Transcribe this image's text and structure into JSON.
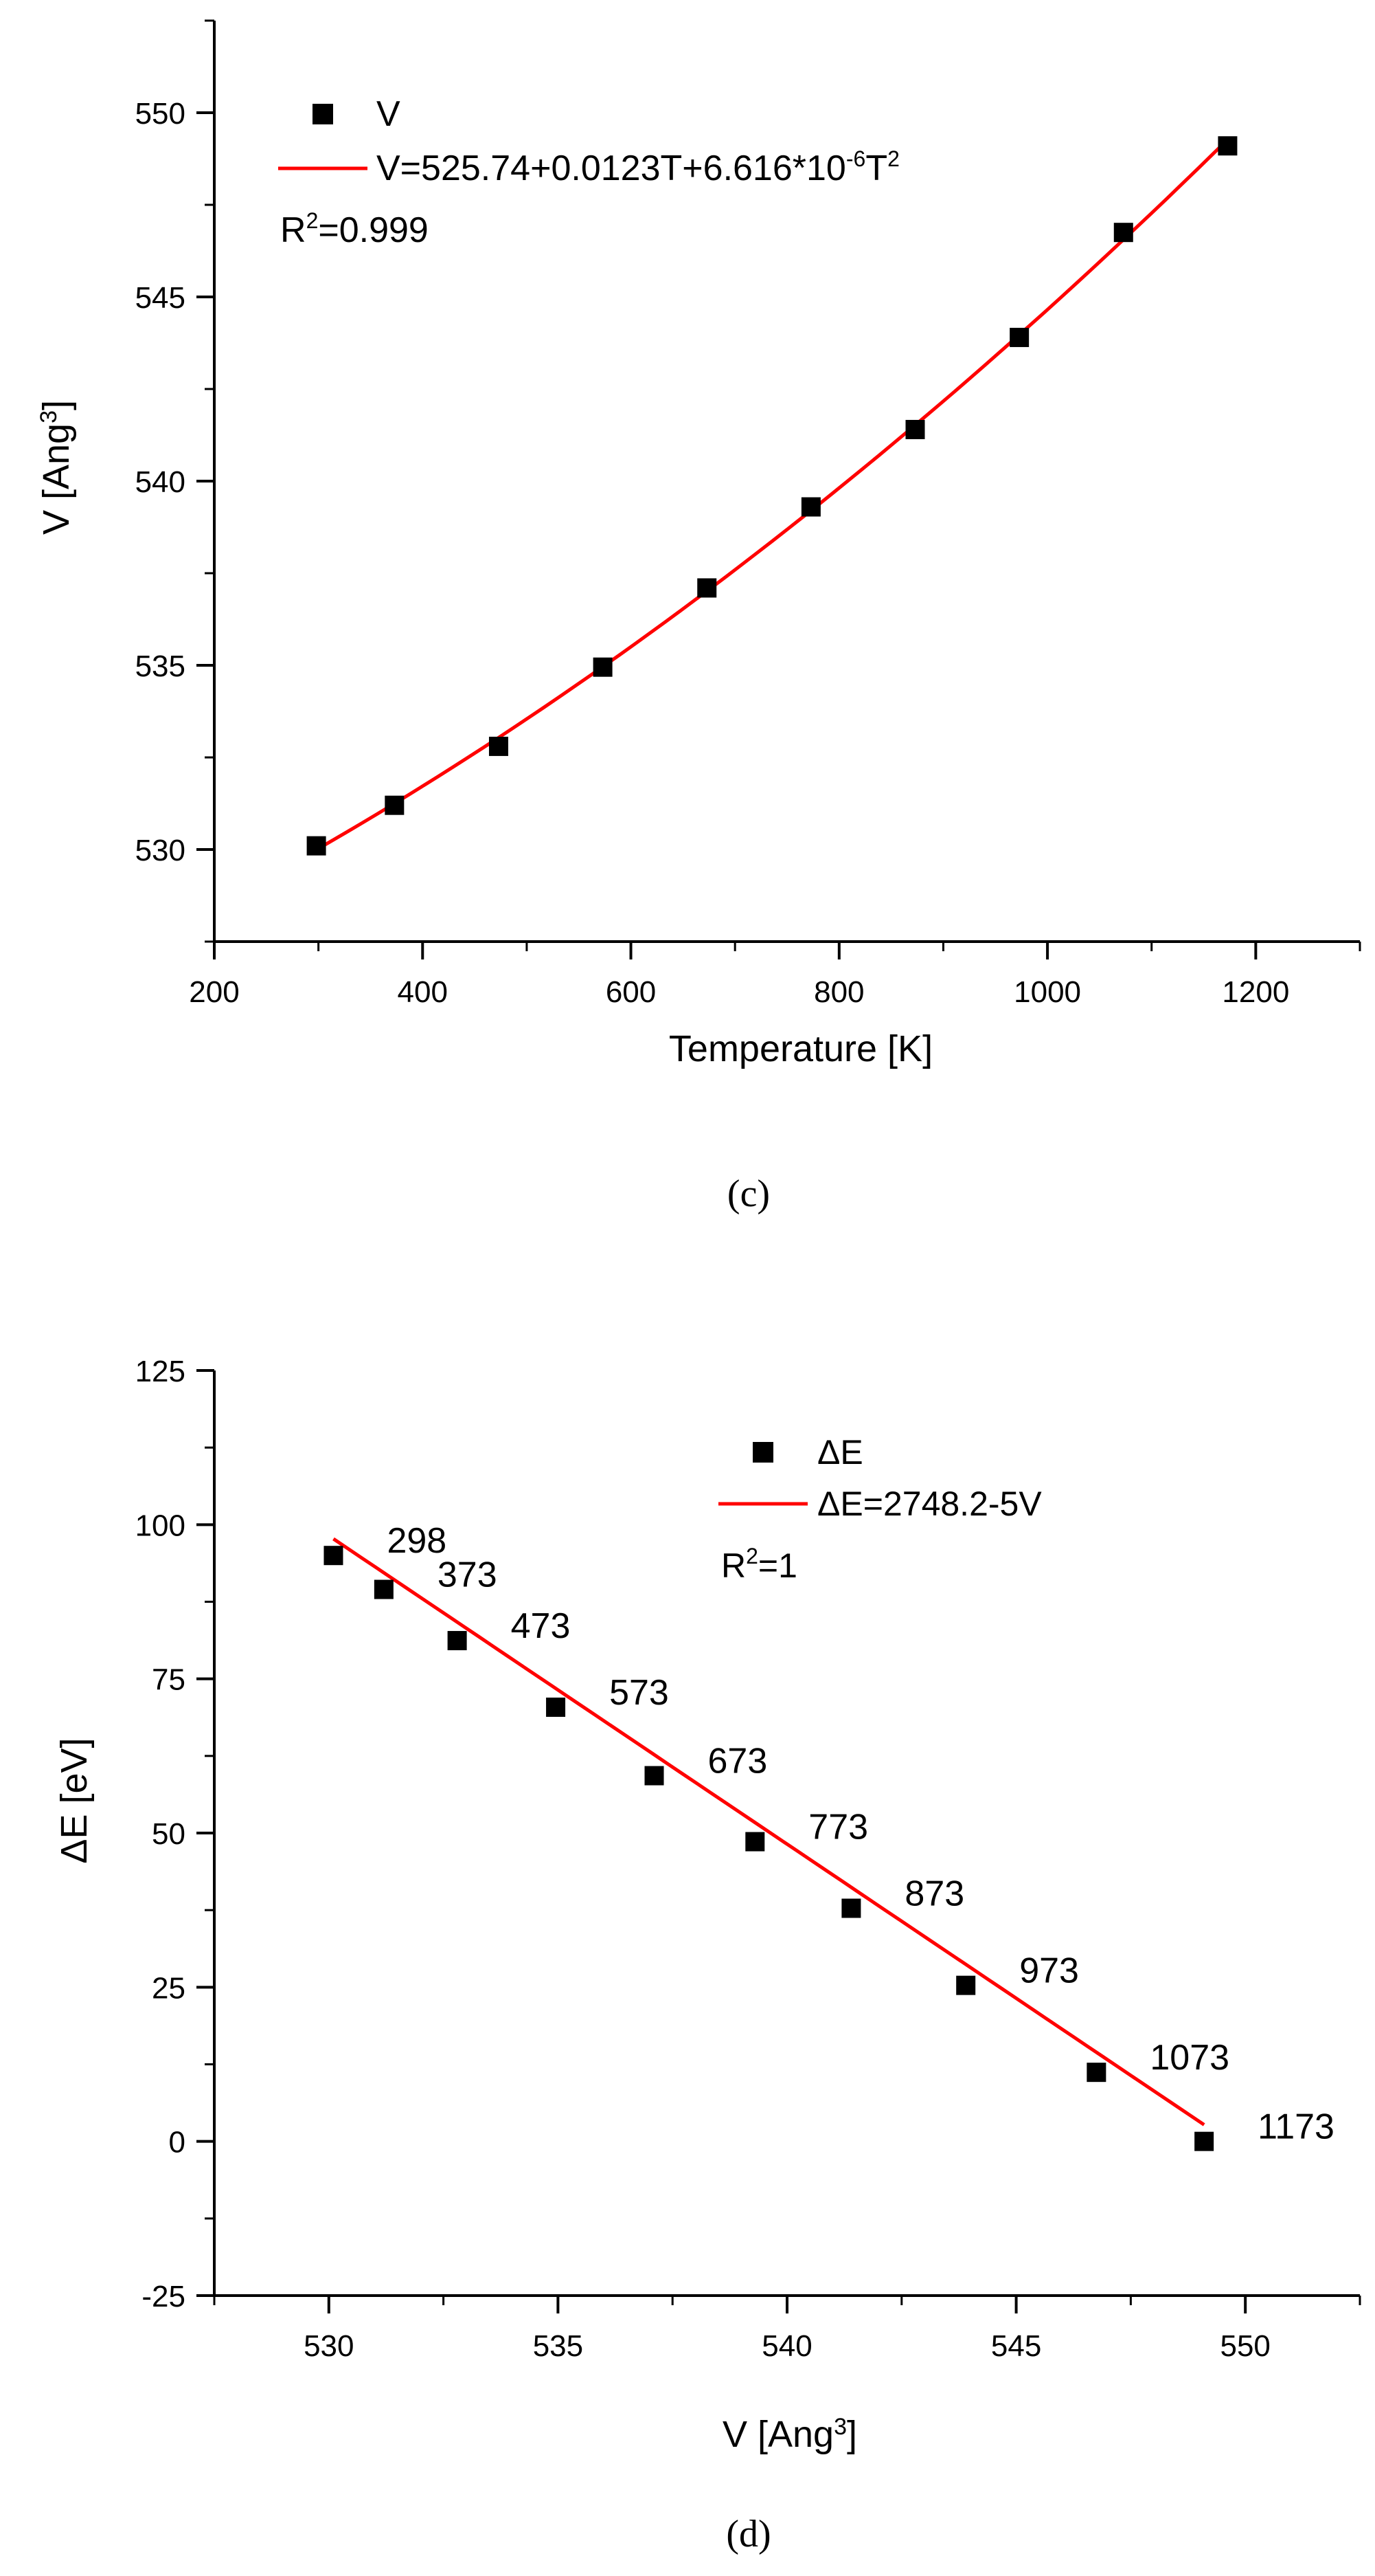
{
  "chart_data": [
    {
      "type": "scatter",
      "panel_label": "(c)",
      "title": "",
      "xlabel": "Temperature [K]",
      "ylabel_main": "V [Ang",
      "ylabel_sup": "3",
      "ylabel_close": "]",
      "xlim": [
        200,
        1300
      ],
      "ylim": [
        527.5,
        552.5
      ],
      "xticks": [
        200,
        400,
        600,
        800,
        1000,
        1200
      ],
      "yticks": [
        530,
        535,
        540,
        545,
        550
      ],
      "x_minor_step": 100,
      "y_minor_step": 2.5,
      "series": [
        {
          "name": "V",
          "kind": "points",
          "color": "#000000",
          "x": [
            298,
            373,
            473,
            573,
            673,
            773,
            873,
            973,
            1073,
            1173
          ],
          "y": [
            530.1,
            531.2,
            532.8,
            534.95,
            537.1,
            539.3,
            541.4,
            543.9,
            546.75,
            549.1
          ]
        },
        {
          "name": "fit",
          "kind": "quadratic_fit",
          "color": "#ff0000",
          "coefficients": [
            525.74,
            0.0123,
            6.616e-06
          ],
          "x_range": [
            298,
            1173
          ]
        }
      ],
      "legend": {
        "position": "top-left",
        "point_label": "V",
        "line_label_main": "V=525.74+0.0123T+6.616*10",
        "line_label_sup1": "-6",
        "line_label_mid": "T",
        "line_label_sup2": "2",
        "r2_main": "R",
        "r2_sup": "2",
        "r2_value": "=0.999"
      }
    },
    {
      "type": "scatter",
      "panel_label": "(d)",
      "title": "",
      "xlabel_main": "V [Ang",
      "xlabel_sup": "3",
      "xlabel_close": "]",
      "ylabel": "ΔE [eV]",
      "xlim": [
        527.5,
        552.5
      ],
      "ylim": [
        -25,
        125
      ],
      "xticks": [
        530,
        535,
        540,
        545,
        550
      ],
      "yticks": [
        -25,
        0,
        25,
        50,
        75,
        100,
        125
      ],
      "x_minor_step": 2.5,
      "y_minor_step": 12.5,
      "series": [
        {
          "name": "ΔE",
          "kind": "points",
          "color": "#000000",
          "x": [
            530.1,
            531.2,
            532.8,
            534.95,
            537.1,
            539.3,
            541.4,
            543.9,
            546.75,
            549.1
          ],
          "y": [
            95,
            89.5,
            81.2,
            70.4,
            59.3,
            48.6,
            37.8,
            25.3,
            11.2,
            0
          ],
          "labels": [
            "298",
            "373",
            "473",
            "573",
            "673",
            "773",
            "873",
            "973",
            "1073",
            "1173"
          ]
        },
        {
          "name": "fit",
          "kind": "linear_fit",
          "color": "#ff0000",
          "coefficients": [
            2748.2,
            -5
          ],
          "x_range": [
            530.1,
            549.1
          ]
        }
      ],
      "legend": {
        "position": "top-center",
        "point_label": "ΔE",
        "line_label": "ΔE=2748.2-5V",
        "r2_main": "R",
        "r2_sup": "2",
        "r2_value": "=1"
      }
    }
  ]
}
